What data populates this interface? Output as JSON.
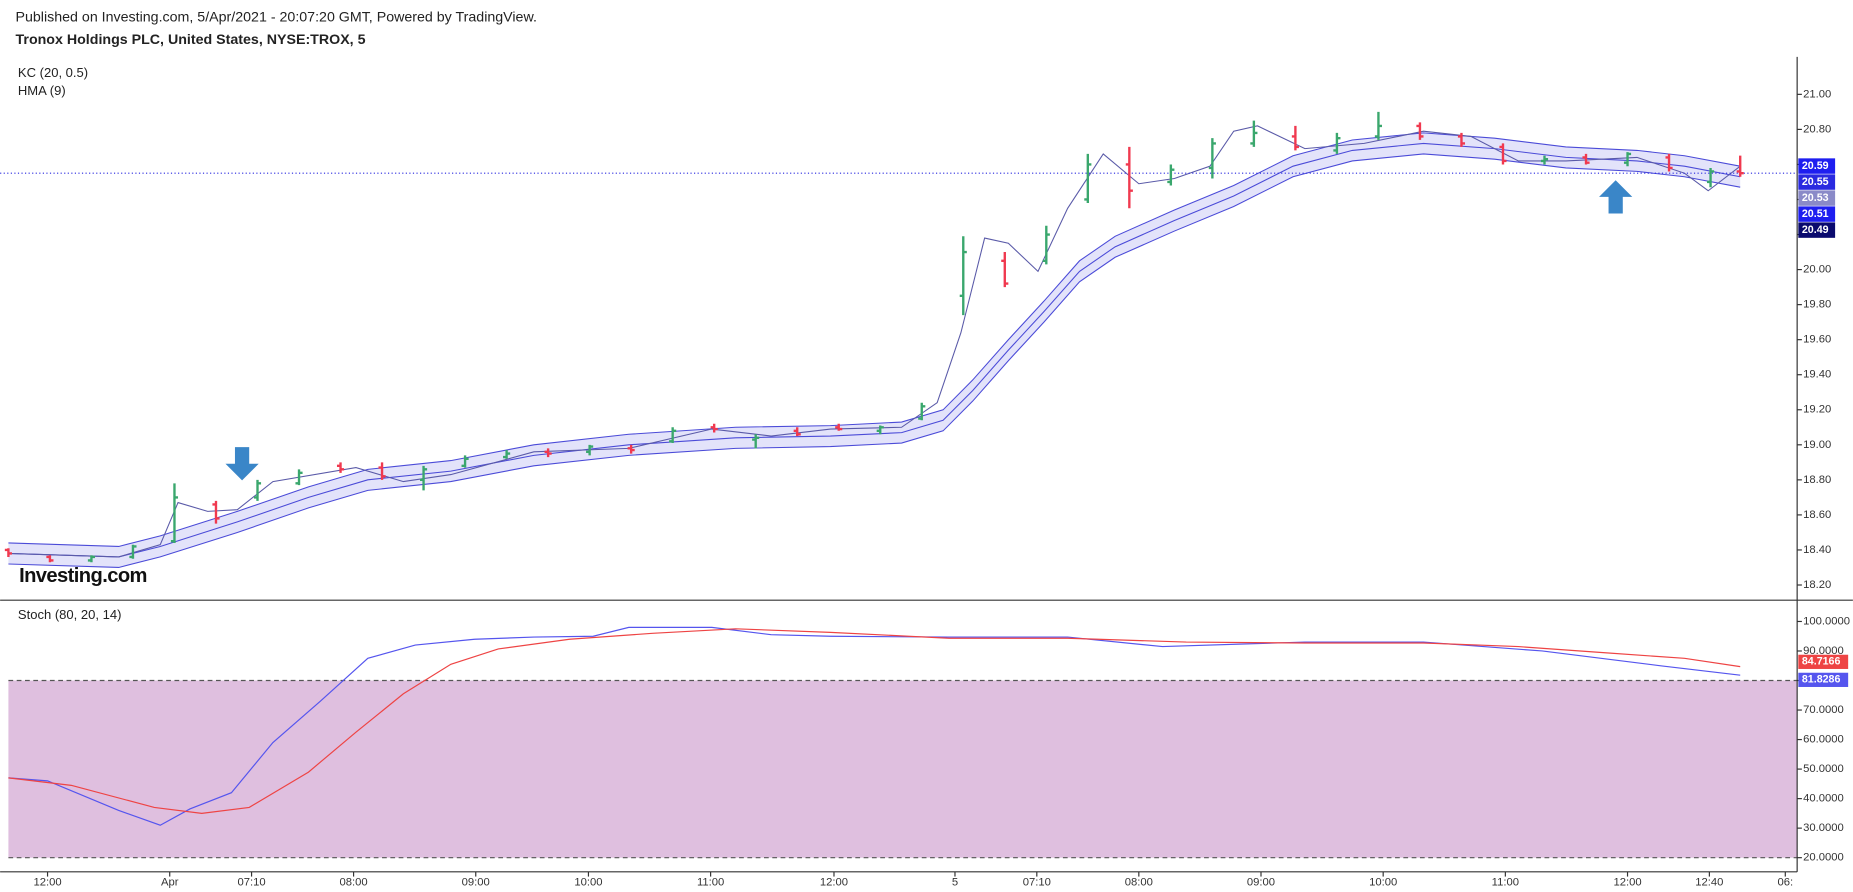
{
  "header": {
    "published": "Published on Investing.com, 5/Apr/2021 - 20:07:20 GMT, Powered by TradingView.",
    "instrument": "Tronox Holdings PLC, United States, NYSE:TROX, 5",
    "watermark": "Investing.com"
  },
  "chart_data": [
    {
      "type": "ohlc",
      "xlim": [
        0,
        301.6
      ],
      "ylim": [
        18.12,
        21.2
      ],
      "yticks": [
        {
          "value": 18.2,
          "label": "18.20"
        },
        {
          "value": 18.4,
          "label": "18.40"
        },
        {
          "value": 18.6,
          "label": "18.60"
        },
        {
          "value": 18.8,
          "label": "18.80"
        },
        {
          "value": 19.0,
          "label": "19.00"
        },
        {
          "value": 19.2,
          "label": "19.20"
        },
        {
          "value": 19.4,
          "label": "19.40"
        },
        {
          "value": 19.6,
          "label": "19.60"
        },
        {
          "value": 19.8,
          "label": "19.80"
        },
        {
          "value": 20.0,
          "label": "20.00"
        },
        {
          "value": 20.2,
          "label": "20.20"
        },
        {
          "value": 20.4,
          "label": "20.40"
        },
        {
          "value": 20.6,
          "label": "20.60"
        },
        {
          "value": 20.8,
          "label": "20.80"
        },
        {
          "value": 21.0,
          "label": "21.00"
        }
      ],
      "up_color": "#3aa76d",
      "down_color": "#f0394f",
      "x": [
        0,
        7,
        14,
        21,
        28,
        35,
        42,
        49,
        56,
        63,
        70,
        77,
        84,
        91,
        98,
        105,
        112,
        119,
        126,
        133,
        140,
        147,
        154,
        161,
        168,
        175,
        182,
        189,
        196,
        203,
        210,
        217,
        224,
        231,
        238,
        245,
        252,
        259,
        266,
        273,
        280,
        287,
        292
      ],
      "open": [
        18.4,
        18.36,
        18.34,
        18.36,
        18.45,
        18.66,
        18.7,
        18.78,
        18.88,
        18.87,
        18.8,
        18.88,
        18.93,
        18.96,
        18.96,
        18.98,
        19.02,
        19.1,
        19.03,
        19.08,
        19.1,
        19.08,
        19.15,
        19.85,
        20.05,
        20.05,
        20.4,
        20.6,
        20.5,
        20.58,
        20.72,
        20.76,
        20.68,
        20.76,
        20.82,
        20.76,
        20.7,
        20.62,
        20.64,
        20.61,
        20.64,
        20.5,
        20.56
      ],
      "high": [
        18.41,
        18.37,
        18.37,
        18.43,
        18.78,
        18.68,
        18.8,
        18.86,
        18.9,
        18.9,
        18.88,
        18.94,
        18.97,
        18.98,
        19.0,
        19.0,
        19.1,
        19.12,
        19.06,
        19.1,
        19.12,
        19.11,
        19.24,
        20.19,
        20.1,
        20.25,
        20.66,
        20.7,
        20.6,
        20.75,
        20.85,
        20.82,
        20.78,
        20.9,
        20.84,
        20.78,
        20.72,
        20.65,
        20.66,
        20.67,
        20.66,
        20.58,
        20.65
      ],
      "low": [
        18.36,
        18.33,
        18.33,
        18.35,
        18.44,
        18.55,
        18.68,
        18.77,
        18.84,
        18.8,
        18.74,
        18.87,
        18.92,
        18.93,
        18.94,
        18.95,
        19.01,
        19.07,
        18.98,
        19.05,
        19.08,
        19.06,
        19.14,
        19.74,
        19.9,
        20.03,
        20.38,
        20.35,
        20.48,
        20.52,
        20.7,
        20.68,
        20.66,
        20.74,
        20.74,
        20.7,
        20.6,
        20.6,
        20.6,
        20.59,
        20.56,
        20.47,
        20.53
      ],
      "close": [
        18.38,
        18.34,
        18.36,
        18.42,
        18.7,
        18.58,
        18.78,
        18.84,
        18.86,
        18.82,
        18.86,
        18.92,
        18.95,
        18.95,
        18.99,
        18.97,
        19.08,
        19.09,
        19.04,
        19.06,
        19.09,
        19.1,
        19.22,
        20.1,
        19.92,
        20.2,
        20.6,
        20.45,
        20.57,
        20.72,
        20.78,
        20.7,
        20.75,
        20.82,
        20.76,
        20.72,
        20.62,
        20.63,
        20.61,
        20.66,
        20.58,
        20.56,
        20.55
      ],
      "indicators": [
        {
          "name": "KC (20, 0.5)",
          "color": "#4b4bd8",
          "band_color": "#e3e3fa",
          "x": [
            0,
            18.6,
            25.6,
            38.6,
            50.6,
            60.6,
            74.6,
            88.6,
            104.6,
            122.6,
            138.6,
            150.6,
            157.6,
            162.6,
            168.6,
            174.6,
            180.6,
            186.6,
            196.6,
            206.6,
            216.6,
            226.6,
            238.6,
            250.6,
            262.6,
            274.6,
            282.6,
            292
          ],
          "upper": [
            18.44,
            18.42,
            18.48,
            18.62,
            18.76,
            18.86,
            18.91,
            19.0,
            19.06,
            19.1,
            19.11,
            19.13,
            19.2,
            19.37,
            19.6,
            19.82,
            20.05,
            20.19,
            20.34,
            20.48,
            20.65,
            20.74,
            20.78,
            20.75,
            20.7,
            20.68,
            20.65,
            20.59
          ],
          "middle": [
            18.38,
            18.36,
            18.42,
            18.56,
            18.7,
            18.8,
            18.85,
            18.94,
            19.0,
            19.04,
            19.05,
            19.07,
            19.14,
            19.31,
            19.54,
            19.76,
            19.99,
            20.13,
            20.28,
            20.42,
            20.59,
            20.68,
            20.72,
            20.69,
            20.64,
            20.62,
            20.59,
            20.53
          ],
          "lower": [
            18.32,
            18.3,
            18.36,
            18.5,
            18.64,
            18.74,
            18.79,
            18.88,
            18.94,
            18.98,
            18.99,
            19.01,
            19.08,
            19.25,
            19.48,
            19.7,
            19.93,
            20.07,
            20.22,
            20.36,
            20.53,
            20.62,
            20.66,
            20.63,
            20.58,
            20.56,
            20.53,
            20.47
          ]
        },
        {
          "name": "HMA (9)",
          "color": "#5a5aa8",
          "x": [
            0,
            18.6,
            25.6,
            28.6,
            33.6,
            38.6,
            44.6,
            58.6,
            66.6,
            74.6,
            88.6,
            104.6,
            118.6,
            128.6,
            138.6,
            150.6,
            156.6,
            160.6,
            164.6,
            168.6,
            173.6,
            178.6,
            184.6,
            190.6,
            196.6,
            202.6,
            206.6,
            210.6,
            218.6,
            228.6,
            238.6,
            246.6,
            254.6,
            262.6,
            274.6,
            282.6,
            286.6,
            292
          ],
          "values": [
            18.38,
            18.36,
            18.43,
            18.67,
            18.62,
            18.63,
            18.79,
            18.87,
            18.79,
            18.83,
            18.96,
            18.98,
            19.09,
            19.05,
            19.09,
            19.1,
            19.24,
            19.64,
            20.18,
            20.15,
            19.99,
            20.35,
            20.66,
            20.49,
            20.52,
            20.59,
            20.79,
            20.82,
            20.69,
            20.72,
            20.79,
            20.76,
            20.62,
            20.62,
            20.64,
            20.55,
            20.45,
            20.59
          ]
        }
      ],
      "price_labels": [
        20.59,
        20.55,
        20.53,
        20.51,
        20.49
      ],
      "price_label_colors": [
        "#1e1ef0",
        "#2a2ae0",
        "#8a8ac8",
        "#1e1ef0",
        "#0a0a6e"
      ],
      "last_line_color": "#2a2ae0"
    },
    {
      "type": "line",
      "title": "Stoch (80, 20, 14)",
      "xlim": [
        0,
        301.6
      ],
      "ylim": [
        15.2,
        106.8
      ],
      "yticks": [
        {
          "value": 20,
          "label": "20.0000"
        },
        {
          "value": 30,
          "label": "30.0000"
        },
        {
          "value": 40,
          "label": "40.0000"
        },
        {
          "value": 50,
          "label": "50.0000"
        },
        {
          "value": 60,
          "label": "60.0000"
        },
        {
          "value": 70,
          "label": "70.0000"
        },
        {
          "value": 80,
          "label": "80.0000"
        },
        {
          "value": 90,
          "label": "90.0000"
        },
        {
          "value": 100,
          "label": "100.0000"
        }
      ],
      "xticks": [
        {
          "value": 6.6,
          "label": "12:00"
        },
        {
          "value": 27.2,
          "label": "Apr"
        },
        {
          "value": 41,
          "label": "07:10"
        },
        {
          "value": 58.2,
          "label": "08:00"
        },
        {
          "value": 78.8,
          "label": "09:00"
        },
        {
          "value": 97.8,
          "label": "10:00"
        },
        {
          "value": 118.4,
          "label": "11:00"
        },
        {
          "value": 139.2,
          "label": "12:00"
        },
        {
          "value": 159.6,
          "label": "5"
        },
        {
          "value": 173.4,
          "label": "07:10"
        },
        {
          "value": 190.6,
          "label": "08:00"
        },
        {
          "value": 211.2,
          "label": "09:00"
        },
        {
          "value": 231.8,
          "label": "10:00"
        },
        {
          "value": 252.4,
          "label": "11:00"
        },
        {
          "value": 273,
          "label": "12:00"
        },
        {
          "value": 286.8,
          "label": "12:40"
        },
        {
          "value": 299.6,
          "label": "06:"
        }
      ],
      "band": [
        20,
        80
      ],
      "band_color": "#dfbfdf",
      "series": [
        {
          "color": "#5555ee",
          "x": [
            0,
            6.6,
            18.6,
            25.6,
            30.6,
            37.6,
            44.6,
            52.6,
            60.6,
            68.6,
            78.6,
            88.6,
            98.6,
            104.6,
            118.6,
            128.6,
            138.6,
            158.6,
            178.6,
            194.6,
            218.6,
            238.6,
            258.6,
            278.6,
            292
          ],
          "values": [
            47,
            46,
            36,
            31,
            36.5,
            42,
            59,
            73,
            87.5,
            92,
            94,
            94.7,
            95,
            98,
            98,
            95.5,
            95,
            94.7,
            94.7,
            91.5,
            93,
            93,
            90,
            85,
            81.8286
          ]
        },
        {
          "color": "#ee4444",
          "x": [
            0,
            10.6,
            24.6,
            32.6,
            40.6,
            50.6,
            58.6,
            66.6,
            74.6,
            82.6,
            94.6,
            108.6,
            122.6,
            138.6,
            158.6,
            178.6,
            198.6,
            218.6,
            238.6,
            254.6,
            268.6,
            282.6,
            292
          ],
          "values": [
            47,
            44.5,
            37,
            35,
            37,
            49,
            62.5,
            75.5,
            85.5,
            90.7,
            94,
            96,
            97.5,
            96.3,
            94.3,
            94.3,
            93,
            92.7,
            92.7,
            91.5,
            89.5,
            87.5,
            84.7166
          ]
        }
      ]
    }
  ]
}
